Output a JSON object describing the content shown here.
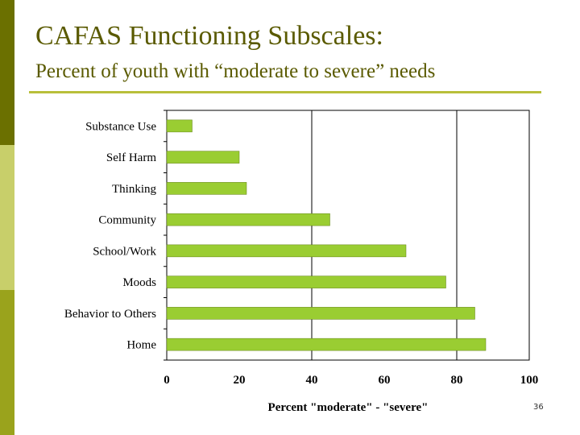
{
  "slide": {
    "title": "CAFAS Functioning Subscales:",
    "subtitle": "Percent of youth with “moderate to severe” needs",
    "page_number": "36"
  },
  "colors": {
    "bar": "#9acd32",
    "bar_stroke": "#5f7f10",
    "title_text": "#5a5a00",
    "rule": "#b9bf3a"
  },
  "chart_data": {
    "type": "bar",
    "orientation": "horizontal",
    "categories": [
      "Substance Use",
      "Self Harm",
      "Thinking",
      "Community",
      "School/Work",
      "Moods",
      "Behavior to Others",
      "Home"
    ],
    "values": [
      7,
      20,
      22,
      45,
      66,
      77,
      85,
      88
    ],
    "xlabel": "Percent \"moderate\" - \"severe\"",
    "ylabel": "",
    "xlim": [
      0,
      100
    ],
    "xticks": [
      0,
      20,
      40,
      60,
      80,
      100
    ],
    "grid": "vertical lines at 40 and 80",
    "legend": "none"
  }
}
